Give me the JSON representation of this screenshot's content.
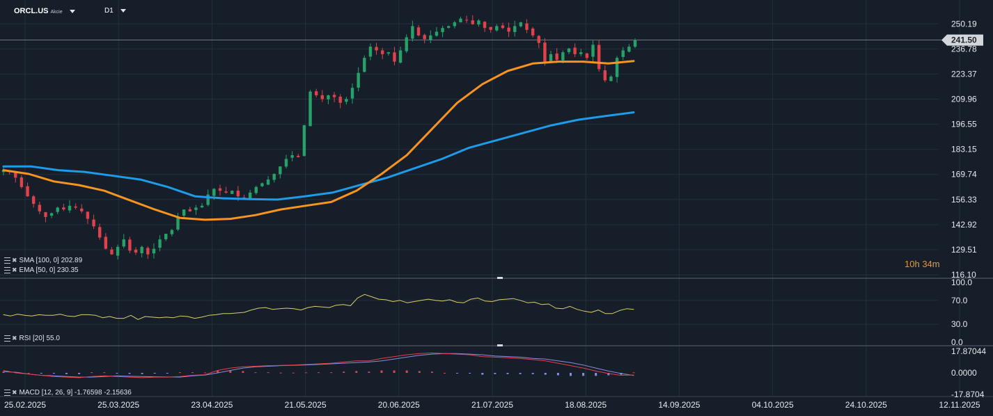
{
  "header": {
    "symbol": "ORCL.US",
    "instrument_type": "Akcie",
    "timeframe": "D1"
  },
  "indicators": {
    "sma": {
      "label": "SMA [100, 0]",
      "value": "202.89",
      "color": "#1e9be9"
    },
    "ema": {
      "label": "EMA [50, 0]",
      "value": "230.35",
      "color": "#f7931e"
    },
    "rsi": {
      "label": "RSI [20]",
      "value": "55.0",
      "color": "#d9cf6a"
    },
    "macd": {
      "label": "MACD [12, 26, 9]",
      "value1": "-1.76598",
      "value2": "-2.15636",
      "macd_color": "#e0424b",
      "signal_color": "#8a8ce0"
    }
  },
  "countdown": {
    "hours": "10",
    "h_unit": "h",
    "minutes": "34",
    "m_unit": "m"
  },
  "colors": {
    "background": "#161f29",
    "up": "#26a269",
    "down": "#e0424b",
    "grid": "#232f3b"
  },
  "chart_data": [
    {
      "type": "candlestick",
      "y_ticks": [
        "250.19",
        "236.78",
        "223.37",
        "209.96",
        "196.55",
        "183.15",
        "169.74",
        "156.33",
        "142.92",
        "129.51",
        "116.10"
      ],
      "ylim": [
        116.1,
        255.5
      ],
      "last_price": "241.50",
      "x_tick_labels": [
        "25.02.2025",
        "25.03.2025",
        "23.04.2025",
        "21.05.2025",
        "20.06.2025",
        "21.07.2025",
        "18.08.2025",
        "14.09.2025",
        "04.10.2025",
        "24.10.2025",
        "12.11.2025"
      ],
      "series": [
        {
          "name": "SMA [100, 0]",
          "color": "#1e9be9"
        },
        {
          "name": "EMA [50, 0]",
          "color": "#f7931e"
        }
      ],
      "close_path": [
        172,
        171,
        168,
        163,
        158,
        154,
        150,
        147,
        149,
        152,
        151,
        153,
        152,
        150,
        146,
        142,
        136,
        130,
        127,
        131,
        135,
        129,
        128,
        131,
        127,
        130,
        135,
        138,
        140,
        147,
        151,
        150,
        152,
        153,
        159,
        162,
        161,
        160,
        161,
        158,
        157,
        160,
        163,
        165,
        167,
        170,
        174,
        178,
        180,
        179,
        196,
        214,
        212,
        210,
        212,
        211,
        208,
        210,
        216,
        224,
        232,
        238,
        236,
        234,
        235,
        230,
        236,
        243,
        249,
        244,
        242,
        244,
        246,
        248,
        249,
        251,
        253,
        252,
        250,
        252,
        248,
        247,
        249,
        248,
        246,
        249,
        251,
        247,
        244,
        240,
        230,
        234,
        231,
        235,
        237,
        234,
        235,
        232,
        239,
        226,
        220,
        222,
        232,
        236,
        238,
        241.5
      ],
      "sma_path": [
        174,
        174,
        172,
        171,
        169,
        167,
        163,
        158,
        157,
        156.5,
        156.3,
        158,
        160,
        164,
        168,
        173,
        178,
        184,
        188,
        192,
        196,
        199,
        201,
        202.89
      ],
      "ema_path": [
        172,
        170,
        166,
        164,
        161,
        156,
        151,
        146.5,
        145.5,
        146,
        148,
        151,
        153,
        155,
        161,
        170,
        180,
        194,
        208,
        218,
        225,
        229,
        230,
        230,
        229,
        230.35
      ]
    },
    {
      "type": "line",
      "name": "RSI [20]",
      "y_ticks": [
        "100.0",
        "70.0",
        "30.0",
        "0.0"
      ],
      "ylim": [
        0,
        100
      ],
      "values": [
        46,
        44,
        47,
        45,
        44,
        46,
        45,
        45,
        47,
        44,
        43,
        46,
        46,
        45,
        41,
        43,
        40,
        40,
        45,
        38,
        43,
        42,
        41,
        42,
        41,
        44,
        43,
        40,
        42,
        45,
        46,
        48,
        48,
        49,
        50,
        54,
        57,
        58,
        55,
        56,
        57,
        56,
        54,
        58,
        60,
        59,
        58,
        62,
        63,
        61,
        74,
        80,
        76,
        72,
        71,
        68,
        70,
        66,
        68,
        70,
        72,
        70,
        69,
        71,
        67,
        66,
        72,
        74,
        69,
        68,
        71,
        72,
        73,
        70,
        66,
        67,
        63,
        64,
        57,
        56,
        60,
        55,
        52,
        50,
        54,
        48,
        48,
        53,
        56,
        55
      ],
      "last": "55.0"
    },
    {
      "type": "macd",
      "name": "MACD [12, 26, 9]",
      "y_ticks": [
        "17.87044",
        "0.0000",
        "-17.8704"
      ],
      "ylim": [
        -17.8704,
        17.87044
      ],
      "macd": [
        2,
        0,
        -1,
        -2,
        -3,
        -3.5,
        -4,
        -3,
        -2.5,
        -3,
        -3.5,
        -4,
        -3.5,
        -3.5,
        -3,
        -2,
        -1.5,
        2,
        4,
        5,
        5.5,
        6,
        6.2,
        6.5,
        7,
        7.5,
        8,
        9,
        10,
        10,
        12,
        13.5,
        15,
        16,
        16.5,
        16,
        15.5,
        15,
        13.5,
        13,
        12.5,
        12,
        11,
        10,
        8,
        6,
        4,
        1.5,
        -0.5,
        -2,
        -1.76598
      ],
      "signal": [
        1,
        0.5,
        -1,
        -2,
        -2.5,
        -3,
        -3.5,
        -3.5,
        -3,
        -2.5,
        -2.8,
        -3,
        -3.2,
        -3.4,
        -3.5,
        -2.5,
        -1.8,
        0,
        2,
        4,
        5,
        5.5,
        6,
        6.3,
        6.6,
        7,
        7.5,
        8,
        8.5,
        9,
        10,
        11.5,
        13,
        14.5,
        15.5,
        16,
        16,
        15.5,
        15,
        14,
        13.5,
        13,
        12,
        11.5,
        10,
        8.5,
        6.5,
        4,
        1.5,
        -0.5,
        -2.15636
      ],
      "histogram": [
        1,
        0.5,
        0,
        -0.5,
        -0.5,
        -1,
        -1,
        0.5,
        0.5,
        -0.5,
        -0.8,
        -1,
        -0.3,
        -0.1,
        0.5,
        0.5,
        0.3,
        2,
        2,
        1.5,
        0.5,
        0.5,
        0.2,
        0.2,
        0.4,
        0.5,
        0.5,
        1,
        1.5,
        1,
        2,
        2,
        2,
        1.5,
        1,
        0,
        -0.5,
        -0.5,
        -1.5,
        -1,
        -1,
        -1,
        -1,
        -1.5,
        -2,
        -2.5,
        -2.5,
        -2.5,
        -2,
        -1.5,
        0.4
      ]
    }
  ]
}
